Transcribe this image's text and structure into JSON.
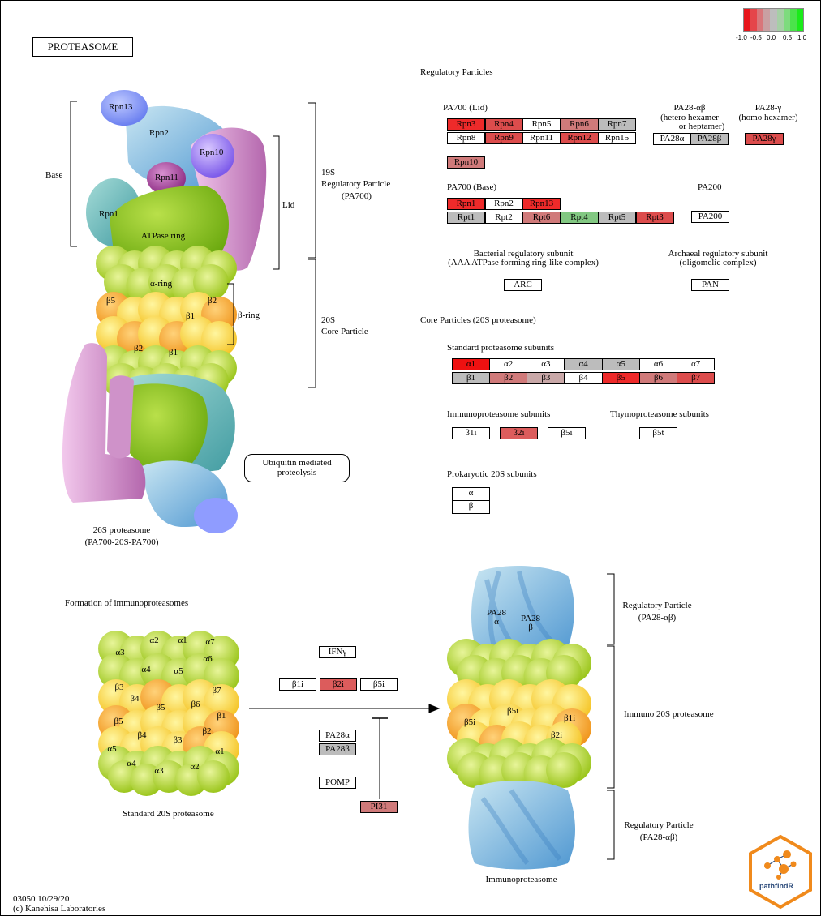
{
  "title": "PROTEASOME",
  "footer": {
    "id_date": "03050 10/29/20",
    "copyright": "(c) Kanehisa Laboratories"
  },
  "legend": {
    "colors": [
      "#e8151b",
      "#e5454a",
      "#d9767a",
      "#c9a0a2",
      "#bdbdbd",
      "#a6cfa6",
      "#7ddb7d",
      "#4be34b",
      "#1aeb1a"
    ],
    "ticks": [
      "-1.0",
      "-0.5",
      "0.0",
      "0.5",
      "1.0"
    ]
  },
  "logo_text": "pathfindR",
  "colors": {
    "red_strong": "#ee2a2a",
    "red_mid": "#dc4c4c",
    "red_soft": "#d07a7a",
    "rose": "#c89a9a",
    "gray": "#bcbcbc",
    "green": "#82c882",
    "white": "#ffffff"
  },
  "labels": {
    "regulatory_particles": "Regulatory Particles",
    "pa700_lid": "PA700 (Lid)",
    "pa28ab_1": "PA28-αβ",
    "pa28ab_2": "(hetero hexamer",
    "pa28ab_3": "or heptamer)",
    "pa28g_1": "PA28-γ",
    "pa28g_2": "(homo hexamer)",
    "pa700_base": "PA700 (Base)",
    "pa200": "PA200",
    "bacterial_1": "Bacterial regulatory subunit",
    "bacterial_2": "(AAA ATPase forming ring-like complex)",
    "archaeal_1": "Archaeal regulatory subunit",
    "archaeal_2": "(oligomelic complex)",
    "core_particles": "Core Particles (20S proteasome)",
    "standard_subunits": "Standard proteasome subunits",
    "immuno_subunits": "Immunoproteasome subunits",
    "thymo_subunits": "Thymoproteasome subunits",
    "prokaryotic": "Prokaryotic 20S subunits",
    "base": "Base",
    "lid": "Lid",
    "reg19s_1": "19S",
    "reg19s_2": "Regulatory Particle",
    "reg19s_3": "(PA700)",
    "core20s_1": "20S",
    "core20s_2": "Core Particle",
    "beta_ring": "β-ring",
    "p26s_1": "26S proteasome",
    "p26s_2": "(PA700-20S-PA700)",
    "ubiq_1": "Ubiquitin mediated",
    "ubiq_2": "proteolysis",
    "formation": "Formation of immunoproteasomes",
    "standard20s": "Standard 20S proteasome",
    "immunoproteasome": "Immunoproteasome",
    "reg_pa28_1": "Regulatory Particle",
    "reg_pa28_2": "(PA28-αβ)",
    "immuno20s": "Immuno 20S proteasome",
    "reg_pa28b_1": "Regulatory Particle",
    "reg_pa28b_2": "(PA28-αβ)"
  },
  "structure_labels": {
    "rpn13": "Rpn13",
    "rpn2": "Rpn2",
    "rpn10": "Rpn10",
    "rpn11": "Rpn11",
    "rpn1": "Rpn1",
    "atpase": "ATPase ring",
    "alpha_ring": "α-ring",
    "b5": "β5",
    "b2": "β2",
    "b1": "β1",
    "b2b": "β2",
    "b1b": "β1",
    "pa28a": "PA28\nα",
    "pa28b": "PA28\nβ",
    "b5i": "β5i",
    "b5i_c": "β5i",
    "b1i": "β1i",
    "b2i": "β2i"
  },
  "std20s_labels": [
    "α2",
    "α1",
    "α7",
    "α3",
    "α4",
    "α5",
    "α6",
    "β3",
    "β4",
    "β5",
    "β6",
    "β7",
    "β5",
    "β4",
    "β3",
    "β2",
    "β1",
    "α5",
    "α4",
    "α3",
    "α2",
    "α1"
  ],
  "genes": {
    "lid": [
      {
        "id": "rpn3",
        "label": "Rpn3",
        "color": "#ee2a2a"
      },
      {
        "id": "rpn4",
        "label": "Rpn4",
        "color": "#dc4c4c"
      },
      {
        "id": "rpn5",
        "label": "Rpn5",
        "color": "#ffffff"
      },
      {
        "id": "rpn6",
        "label": "Rpn6",
        "color": "#d07a7a"
      },
      {
        "id": "rpn7",
        "label": "Rpn7",
        "color": "#bcbcbc"
      },
      {
        "id": "rpn8",
        "label": "Rpn8",
        "color": "#ffffff"
      },
      {
        "id": "rpn9",
        "label": "Rpn9",
        "color": "#dc4c4c"
      },
      {
        "id": "rpn11",
        "label": "Rpn11",
        "color": "#ffffff"
      },
      {
        "id": "rpn12",
        "label": "Rpn12",
        "color": "#dc4c4c"
      },
      {
        "id": "rpn15",
        "label": "Rpn15",
        "color": "#ffffff"
      },
      {
        "id": "rpn10",
        "label": "Rpn10",
        "color": "#d07a7a"
      }
    ],
    "pa28": [
      {
        "id": "pa28a",
        "label": "PA28α",
        "color": "#ffffff"
      },
      {
        "id": "pa28b",
        "label": "PA28β",
        "color": "#bcbcbc"
      },
      {
        "id": "pa28g",
        "label": "PA28γ",
        "color": "#dc4c4c"
      }
    ],
    "base": [
      {
        "id": "rpn1",
        "label": "Rpn1",
        "color": "#ee2a2a"
      },
      {
        "id": "rpn2",
        "label": "Rpn2",
        "color": "#ffffff"
      },
      {
        "id": "rpn13",
        "label": "Rpn13",
        "color": "#ee2a2a"
      },
      {
        "id": "rpt1",
        "label": "Rpt1",
        "color": "#bcbcbc"
      },
      {
        "id": "rpt2",
        "label": "Rpt2",
        "color": "#ffffff"
      },
      {
        "id": "rpt6",
        "label": "Rpt6",
        "color": "#d07a7a"
      },
      {
        "id": "rpt4",
        "label": "Rpt4",
        "color": "#82c882"
      },
      {
        "id": "rpt5",
        "label": "Rpt5",
        "color": "#bcbcbc"
      },
      {
        "id": "rpt3",
        "label": "Rpt3",
        "color": "#dc4c4c"
      }
    ],
    "pa200": {
      "label": "PA200",
      "color": "#ffffff"
    },
    "arc": {
      "label": "ARC",
      "color": "#ffffff"
    },
    "pan": {
      "label": "PAN",
      "color": "#ffffff"
    },
    "alpha": [
      {
        "label": "α1",
        "color": "#ee1111"
      },
      {
        "label": "α2",
        "color": "#ffffff"
      },
      {
        "label": "α3",
        "color": "#ffffff"
      },
      {
        "label": "α4",
        "color": "#bcbcbc"
      },
      {
        "label": "α5",
        "color": "#bcbcbc"
      },
      {
        "label": "α6",
        "color": "#ffffff"
      },
      {
        "label": "α7",
        "color": "#ffffff"
      }
    ],
    "beta": [
      {
        "label": "β1",
        "color": "#bcbcbc"
      },
      {
        "label": "β2",
        "color": "#d07a7a"
      },
      {
        "label": "β3",
        "color": "#c9a8a8"
      },
      {
        "label": "β4",
        "color": "#ffffff"
      },
      {
        "label": "β5",
        "color": "#ee2a2a"
      },
      {
        "label": "β6",
        "color": "#d07a7a"
      },
      {
        "label": "β7",
        "color": "#dc4c4c"
      }
    ],
    "immuno": [
      {
        "label": "β1i",
        "color": "#ffffff"
      },
      {
        "label": "β2i",
        "color": "#dc5c5c"
      },
      {
        "label": "β5i",
        "color": "#ffffff"
      }
    ],
    "thymo": {
      "label": "β5t",
      "color": "#ffffff"
    },
    "prok": [
      {
        "label": "α",
        "color": "#ffffff"
      },
      {
        "label": "β",
        "color": "#ffffff"
      }
    ],
    "formation": {
      "ifng": {
        "label": "IFNγ",
        "color": "#ffffff"
      },
      "b1i": {
        "label": "β1i",
        "color": "#ffffff"
      },
      "b2i": {
        "label": "β2i",
        "color": "#dc5c5c"
      },
      "b5i": {
        "label": "β5i",
        "color": "#ffffff"
      },
      "pa28a": {
        "label": "PA28α",
        "color": "#ffffff"
      },
      "pa28b": {
        "label": "PA28β",
        "color": "#bcbcbc"
      },
      "pomp": {
        "label": "POMP",
        "color": "#ffffff"
      },
      "pi31": {
        "label": "PI31",
        "color": "#d07a7a"
      }
    }
  }
}
